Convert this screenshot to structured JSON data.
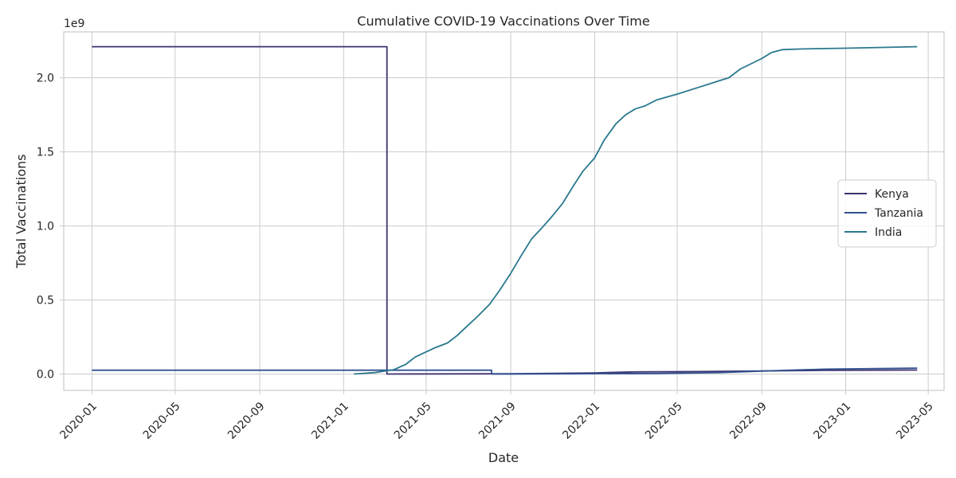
{
  "chart_data": {
    "type": "line",
    "title": "Cumulative COVID-19 Vaccinations Over Time",
    "xlabel": "Date",
    "ylabel": "Total Vaccinations",
    "y_offset_label": "1e9",
    "xlim": [
      "2019-11-21",
      "2023-05-24"
    ],
    "ylim": [
      -0.11,
      2.31
    ],
    "x_ticks": [
      "2020-01",
      "2020-05",
      "2020-09",
      "2021-01",
      "2021-05",
      "2021-09",
      "2022-01",
      "2022-05",
      "2022-09",
      "2023-01",
      "2023-05"
    ],
    "y_ticks": [
      "0.0",
      "0.5",
      "1.0",
      "1.5",
      "2.0"
    ],
    "grid": true,
    "legend_position": "center-right",
    "series": [
      {
        "name": "Kenya",
        "color": "#3f3270",
        "points": [
          [
            "2020-01-01",
            2.21
          ],
          [
            "2021-03-05",
            2.21
          ],
          [
            "2021-03-05",
            0.0
          ],
          [
            "2021-09-01",
            0.002
          ],
          [
            "2022-01-01",
            0.008
          ],
          [
            "2022-03-01",
            0.015
          ],
          [
            "2022-06-01",
            0.017
          ],
          [
            "2022-09-01",
            0.021
          ],
          [
            "2022-12-01",
            0.025
          ],
          [
            "2023-04-15",
            0.027
          ]
        ]
      },
      {
        "name": "Tanzania",
        "color": "#31518f",
        "points": [
          [
            "2020-01-01",
            0.026
          ],
          [
            "2021-08-04",
            0.026
          ],
          [
            "2021-08-04",
            0.0
          ],
          [
            "2021-12-01",
            0.002
          ],
          [
            "2022-04-01",
            0.004
          ],
          [
            "2022-07-01",
            0.01
          ],
          [
            "2022-09-01",
            0.02
          ],
          [
            "2022-12-01",
            0.033
          ],
          [
            "2023-04-15",
            0.04
          ]
        ]
      },
      {
        "name": "India",
        "color": "#2a788e",
        "points": [
          [
            "2021-01-16",
            0.0
          ],
          [
            "2021-02-15",
            0.01
          ],
          [
            "2021-03-15",
            0.03
          ],
          [
            "2021-04-01",
            0.065
          ],
          [
            "2021-04-15",
            0.115
          ],
          [
            "2021-05-01",
            0.15
          ],
          [
            "2021-05-15",
            0.18
          ],
          [
            "2021-06-01",
            0.21
          ],
          [
            "2021-06-15",
            0.26
          ],
          [
            "2021-07-01",
            0.33
          ],
          [
            "2021-07-15",
            0.39
          ],
          [
            "2021-08-01",
            0.47
          ],
          [
            "2021-08-15",
            0.56
          ],
          [
            "2021-09-01",
            0.68
          ],
          [
            "2021-09-15",
            0.79
          ],
          [
            "2021-10-01",
            0.91
          ],
          [
            "2021-10-15",
            0.98
          ],
          [
            "2021-11-01",
            1.07
          ],
          [
            "2021-11-15",
            1.15
          ],
          [
            "2021-12-01",
            1.27
          ],
          [
            "2021-12-15",
            1.37
          ],
          [
            "2022-01-01",
            1.46
          ],
          [
            "2022-01-15",
            1.58
          ],
          [
            "2022-02-01",
            1.69
          ],
          [
            "2022-02-15",
            1.75
          ],
          [
            "2022-03-01",
            1.79
          ],
          [
            "2022-03-15",
            1.81
          ],
          [
            "2022-04-01",
            1.85
          ],
          [
            "2022-05-01",
            1.89
          ],
          [
            "2022-06-01",
            1.935
          ],
          [
            "2022-07-01",
            1.98
          ],
          [
            "2022-07-15",
            2.0
          ],
          [
            "2022-08-01",
            2.06
          ],
          [
            "2022-09-01",
            2.13
          ],
          [
            "2022-09-15",
            2.17
          ],
          [
            "2022-10-01",
            2.19
          ],
          [
            "2022-11-01",
            2.195
          ],
          [
            "2023-01-01",
            2.2
          ],
          [
            "2023-04-15",
            2.21
          ]
        ]
      }
    ]
  }
}
